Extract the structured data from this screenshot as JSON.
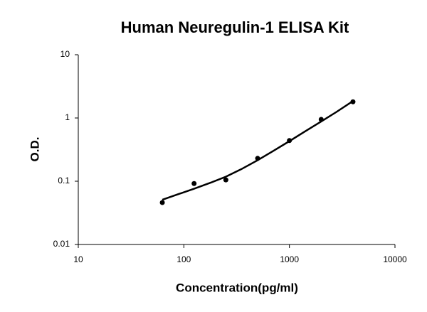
{
  "chart_data": {
    "type": "scatter",
    "title": "Human Neuregulin-1 ELISA Kit",
    "x_label": "Concentration(pg/ml)",
    "y_label": "O.D.",
    "xscale": "log",
    "yscale": "log",
    "xlim": [
      10,
      10000
    ],
    "ylim": [
      0.01,
      10
    ],
    "xticks": [
      10,
      100,
      1000,
      10000
    ],
    "yticks": [
      0.01,
      0.1,
      1,
      10
    ],
    "grid": false,
    "series": [
      {
        "mode": "markers",
        "color": "#000000",
        "x": [
          62.5,
          125,
          250,
          500,
          1000,
          2000,
          4000
        ],
        "values": [
          0.046,
          0.092,
          0.105,
          0.23,
          0.44,
          0.95,
          1.8
        ]
      },
      {
        "mode": "line",
        "color": "#000000",
        "x": [
          62.5,
          90,
          125,
          180,
          250,
          350,
          500,
          700,
          1000,
          1400,
          2000,
          2800,
          4000
        ],
        "values": [
          0.051,
          0.063,
          0.076,
          0.095,
          0.118,
          0.155,
          0.215,
          0.3,
          0.43,
          0.61,
          0.88,
          1.25,
          1.85
        ]
      }
    ]
  }
}
